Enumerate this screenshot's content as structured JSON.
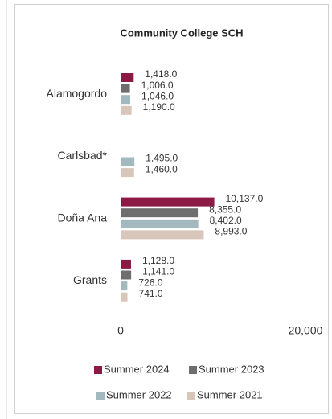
{
  "chart_data": {
    "type": "bar",
    "orientation": "horizontal",
    "title": "Community College SCH",
    "categories": [
      "Alamogordo",
      "Carlsbad*",
      "Doña Ana",
      "Grants"
    ],
    "series": [
      {
        "name": "Summer 2024",
        "color": "#8c1a45",
        "values": [
          1418,
          null,
          10137,
          1128
        ],
        "value_labels": [
          "1,418.0",
          null,
          "10,137.0",
          "1,128.0"
        ]
      },
      {
        "name": "Summer 2023",
        "color": "#6e6e6e",
        "values": [
          1006,
          null,
          8355,
          1141
        ],
        "value_labels": [
          "1,006.0",
          null,
          "8,355.0",
          "1,141.0"
        ]
      },
      {
        "name": "Summer 2022",
        "color": "#a3b8bf",
        "values": [
          1046,
          1495,
          8402,
          726
        ],
        "value_labels": [
          "1,046.0",
          "1,495.0",
          "8,402.0",
          "726.0"
        ]
      },
      {
        "name": "Summer 2021",
        "color": "#d8c6bb",
        "values": [
          1190,
          1460,
          8993,
          741
        ],
        "value_labels": [
          "1,190.0",
          "1,460.0",
          "8,993.0",
          "741.0"
        ]
      }
    ],
    "xlim": [
      0,
      20000
    ],
    "xticks": [
      0,
      {
        "value": 20000,
        "label": "20,000"
      }
    ],
    "grid": false,
    "legend": "bottom"
  }
}
